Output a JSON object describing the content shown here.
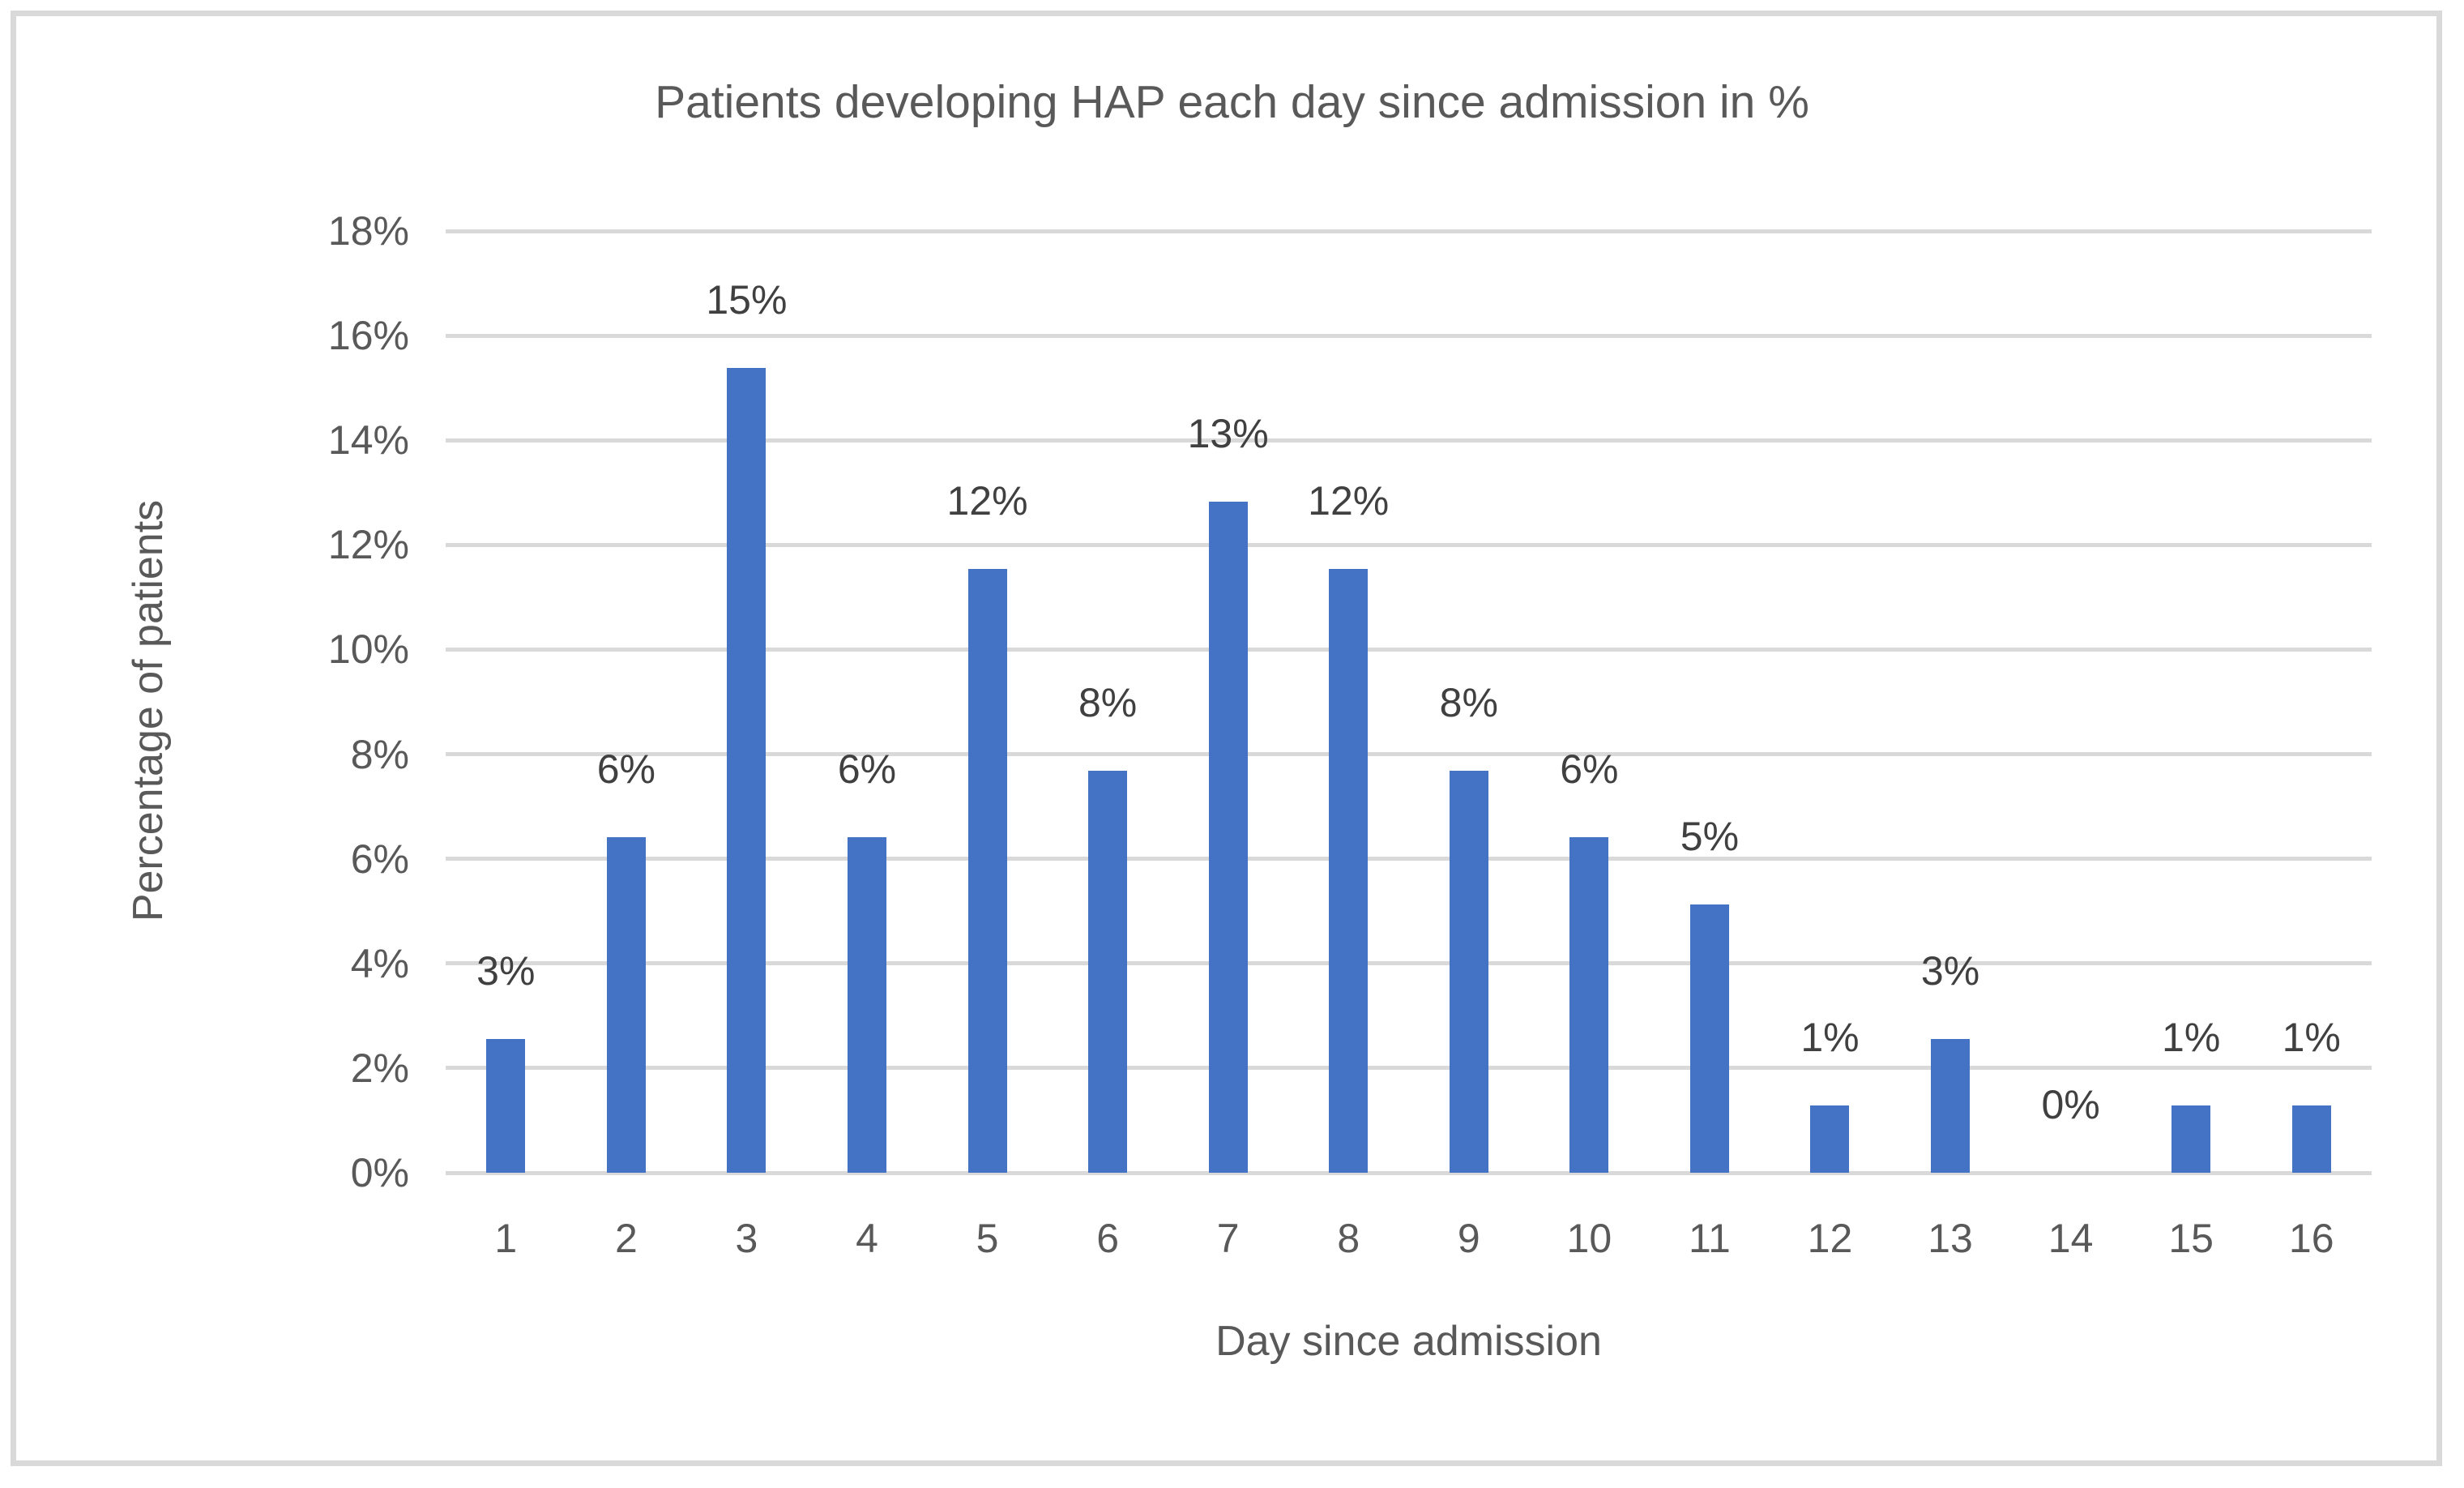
{
  "frame": {
    "border_color": "#D9D9D9",
    "background_color": "#FFFFFF"
  },
  "chart_data": {
    "type": "bar",
    "title": "Patients developing HAP each day since admission in %",
    "xlabel": "Day since admission",
    "ylabel": "Percentage of patients",
    "categories": [
      "1",
      "2",
      "3",
      "4",
      "5",
      "6",
      "7",
      "8",
      "9",
      "10",
      "11",
      "12",
      "13",
      "14",
      "15",
      "16"
    ],
    "values": [
      2.56,
      6.41,
      15.38,
      6.41,
      11.54,
      7.69,
      12.82,
      11.54,
      7.69,
      6.41,
      5.13,
      1.28,
      2.56,
      0,
      1.28,
      1.28
    ],
    "data_labels": [
      "3%",
      "6%",
      "15%",
      "6%",
      "12%",
      "8%",
      "13%",
      "12%",
      "8%",
      "6%",
      "5%",
      "1%",
      "3%",
      "0%",
      "1%",
      "1%"
    ],
    "y_tick_labels": [
      "0%",
      "2%",
      "4%",
      "6%",
      "8%",
      "10%",
      "12%",
      "14%",
      "16%",
      "18%"
    ],
    "ylim": [
      0,
      18
    ],
    "y_step": 2,
    "grid": true,
    "legend": "none",
    "bar_color": "#4472C4",
    "gridline_color": "#D9D9D9",
    "axis_text_color": "#595959",
    "data_label_color": "#404040"
  }
}
